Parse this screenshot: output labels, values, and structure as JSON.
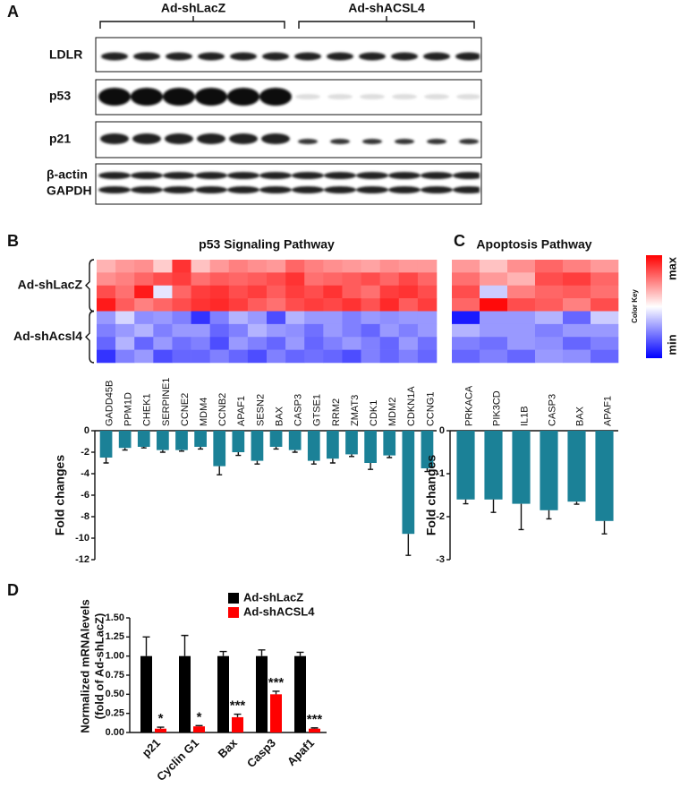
{
  "blot": {
    "label": "A",
    "groups": [
      "Ad-shLacZ",
      "Ad-shACSL4"
    ],
    "rows": [
      "LDLR",
      "p53",
      "p21",
      "β-actin",
      "GAPDH"
    ]
  },
  "chart_data": [
    {
      "type": "heatmap",
      "panel": "B",
      "title": "p53 Signaling Pathway",
      "categories": [
        "GADD45B",
        "PPM1D",
        "CHEK1",
        "SERPINE1",
        "CCNE2",
        "MDM4",
        "CCNB2",
        "APAF1",
        "SESN2",
        "BAX",
        "CASP3",
        "GTSE1",
        "RRM2",
        "ZMAT3",
        "CDK1",
        "MDM2",
        "CDKN1A",
        "CCNG1"
      ],
      "groups": [
        {
          "name": "Ad-shLacZ",
          "values": [
            [
              0.65,
              0.7,
              0.72,
              0.6,
              0.9,
              0.62,
              0.7,
              0.75,
              0.72,
              0.7,
              0.8,
              0.75,
              0.72,
              0.7,
              0.68,
              0.72,
              0.7,
              0.7
            ],
            [
              0.72,
              0.75,
              0.8,
              0.85,
              0.88,
              0.78,
              0.82,
              0.8,
              0.82,
              0.85,
              0.9,
              0.78,
              0.8,
              0.82,
              0.85,
              0.8,
              0.86,
              0.8
            ],
            [
              0.85,
              0.78,
              0.95,
              0.45,
              0.8,
              0.88,
              0.9,
              0.85,
              0.88,
              0.82,
              0.88,
              0.85,
              0.9,
              0.82,
              0.78,
              0.88,
              0.9,
              0.85
            ],
            [
              0.95,
              0.82,
              0.75,
              0.8,
              0.85,
              0.9,
              0.92,
              0.88,
              0.82,
              0.78,
              0.85,
              0.88,
              0.86,
              0.9,
              0.84,
              0.92,
              0.82,
              0.88
            ]
          ]
        },
        {
          "name": "Ad-shAcsl4",
          "values": [
            [
              0.3,
              0.42,
              0.28,
              0.3,
              0.25,
              0.1,
              0.25,
              0.35,
              0.3,
              0.15,
              0.35,
              0.3,
              0.3,
              0.25,
              0.3,
              0.28,
              0.3,
              0.3
            ],
            [
              0.25,
              0.3,
              0.35,
              0.25,
              0.3,
              0.3,
              0.2,
              0.25,
              0.35,
              0.3,
              0.28,
              0.22,
              0.3,
              0.25,
              0.2,
              0.3,
              0.25,
              0.3
            ],
            [
              0.2,
              0.35,
              0.2,
              0.3,
              0.22,
              0.25,
              0.15,
              0.3,
              0.25,
              0.2,
              0.3,
              0.2,
              0.25,
              0.3,
              0.25,
              0.2,
              0.3,
              0.22
            ],
            [
              0.1,
              0.25,
              0.3,
              0.15,
              0.2,
              0.2,
              0.25,
              0.2,
              0.15,
              0.25,
              0.2,
              0.22,
              0.2,
              0.15,
              0.25,
              0.2,
              0.25,
              0.2
            ]
          ]
        }
      ]
    },
    {
      "type": "bar",
      "ylabel": "Fold changes",
      "color": "#1b8197",
      "values": [
        -2.5,
        -1.6,
        -1.5,
        -1.8,
        -1.8,
        -1.5,
        -3.3,
        -2.0,
        -2.8,
        -1.5,
        -1.8,
        -2.8,
        -2.6,
        -2.2,
        -3.0,
        -2.3,
        -9.6,
        -3.5
      ],
      "errors": [
        0.5,
        0.2,
        0.1,
        0.2,
        0.1,
        0.2,
        0.8,
        0.3,
        0.3,
        0.2,
        0.2,
        0.3,
        0.4,
        0.2,
        0.6,
        0.2,
        2.0,
        0.3
      ],
      "ylim": [
        -12,
        0
      ],
      "yticks": [
        0,
        -2,
        -4,
        -6,
        -8,
        -10,
        -12
      ]
    },
    {
      "type": "heatmap",
      "panel": "C",
      "title": "Apoptosis Pathway",
      "categories": [
        "PRKACA",
        "PIK3CD",
        "IL1B",
        "CASP3",
        "BAX",
        "APAF1"
      ],
      "groups": [
        {
          "values": [
            [
              0.7,
              0.62,
              0.72,
              0.8,
              0.75,
              0.7
            ],
            [
              0.78,
              0.7,
              0.65,
              0.85,
              0.88,
              0.8
            ],
            [
              0.85,
              0.4,
              0.75,
              0.8,
              0.82,
              0.78
            ],
            [
              0.8,
              0.98,
              0.85,
              0.82,
              0.75,
              0.85
            ]
          ]
        },
        {
          "values": [
            [
              0.05,
              0.3,
              0.3,
              0.35,
              0.2,
              0.4
            ],
            [
              0.35,
              0.3,
              0.3,
              0.25,
              0.3,
              0.3
            ],
            [
              0.25,
              0.22,
              0.3,
              0.28,
              0.2,
              0.25
            ],
            [
              0.2,
              0.25,
              0.2,
              0.3,
              0.28,
              0.2
            ]
          ]
        }
      ],
      "color_key": {
        "title": "Color Key",
        "max": "max",
        "min": "min",
        "colormap": [
          "#0000ff",
          "#ffffff",
          "#ff0000"
        ]
      }
    },
    {
      "type": "bar",
      "ylabel": "Fold changes",
      "color": "#1b8197",
      "values": [
        -1.6,
        -1.6,
        -1.7,
        -1.85,
        -1.65,
        -2.1
      ],
      "errors": [
        0.1,
        0.3,
        0.6,
        0.2,
        0.06,
        0.3
      ],
      "ylim": [
        -3,
        0
      ],
      "yticks": [
        0,
        -1,
        -2,
        -3
      ]
    },
    {
      "type": "grouped-bar",
      "panel": "D",
      "ylabel": [
        "Normalized mRNAlevels",
        "(fold of Ad-shLacZ)"
      ],
      "categories": [
        "p21",
        "Cyclin G1",
        "Bax",
        "Casp3",
        "Apaf1"
      ],
      "series": [
        {
          "name": "Ad-shLacZ",
          "color": "#000000",
          "values": [
            1,
            1,
            1,
            1,
            1
          ],
          "errors": [
            0.25,
            0.27,
            0.06,
            0.08,
            0.05
          ]
        },
        {
          "name": "Ad-shACSL4",
          "color": "#ff0000",
          "values": [
            0.05,
            0.08,
            0.2,
            0.5,
            0.05
          ],
          "errors": [
            0.02,
            0.01,
            0.04,
            0.04,
            0.01
          ],
          "significance": [
            "*",
            "*",
            "***",
            "***",
            "***"
          ]
        }
      ],
      "ylim": [
        0,
        1.5
      ],
      "yticks": [
        {
          "value": 0,
          "label": "0.00"
        },
        {
          "value": 0.25,
          "label": "0.25"
        },
        {
          "value": 0.5,
          "label": "0.50"
        },
        {
          "value": 0.75,
          "label": "0.75"
        },
        {
          "value": 1,
          "label": "1.00"
        },
        {
          "value": 1.25,
          "label": "1.25"
        },
        {
          "value": 1.5,
          "label": "1.50"
        }
      ]
    }
  ]
}
